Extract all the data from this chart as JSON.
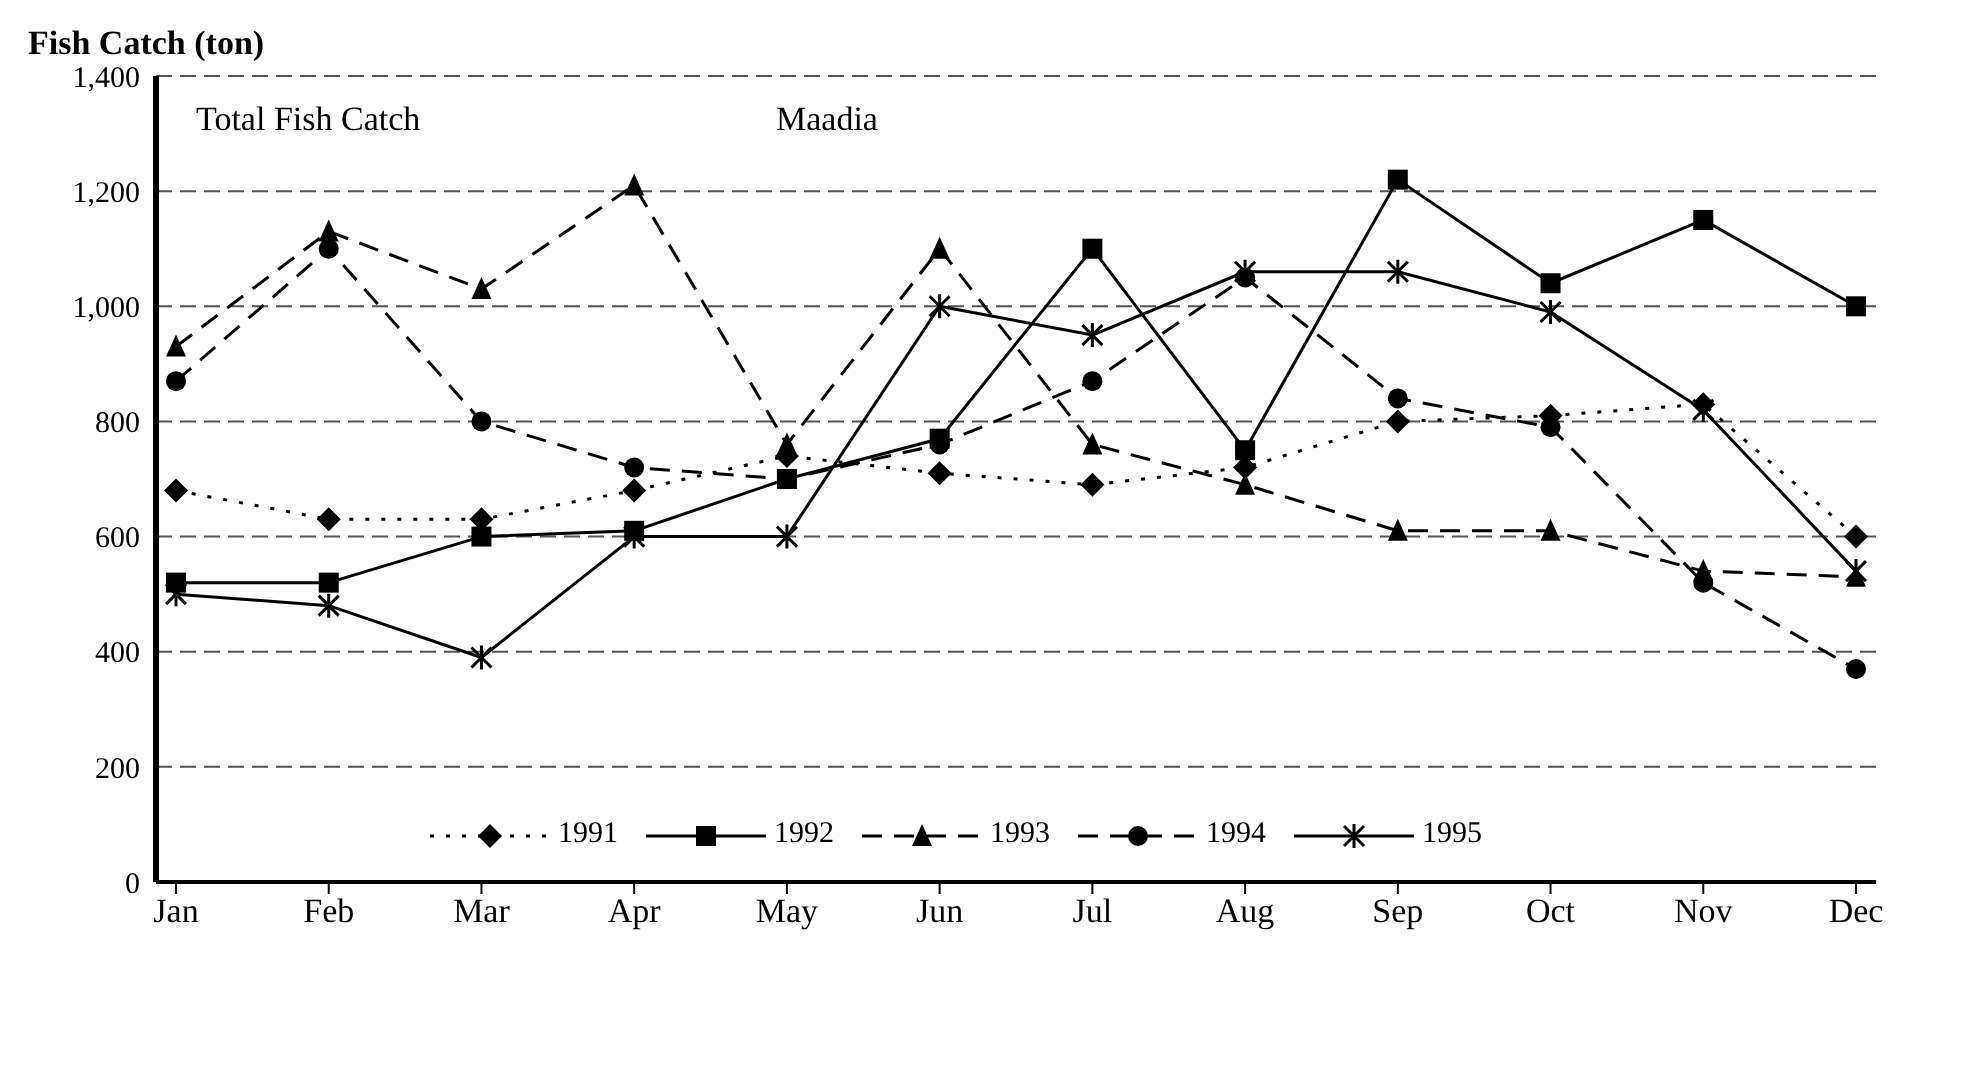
{
  "chart_data": {
    "type": "line",
    "ylabel": "Fish Catch (ton)",
    "annotations": [
      "Total Fish Catch",
      "Maadia"
    ],
    "categories": [
      "Jan",
      "Feb",
      "Mar",
      "Apr",
      "May",
      "Jun",
      "Jul",
      "Aug",
      "Sep",
      "Oct",
      "Nov",
      "Dec"
    ],
    "series": [
      {
        "name": "1991",
        "color": "#000000",
        "marker": "diamond",
        "line_style": "dotted",
        "values": [
          680,
          630,
          630,
          680,
          740,
          710,
          690,
          720,
          800,
          810,
          830,
          600
        ]
      },
      {
        "name": "1992",
        "color": "#000000",
        "marker": "square",
        "line_style": "solid",
        "values": [
          520,
          520,
          600,
          610,
          700,
          770,
          1100,
          750,
          1220,
          1040,
          1150,
          1000
        ]
      },
      {
        "name": "1993",
        "color": "#000000",
        "marker": "triangle",
        "line_style": "dashed",
        "values": [
          930,
          1130,
          1030,
          1210,
          760,
          1100,
          760,
          690,
          610,
          610,
          540,
          530
        ]
      },
      {
        "name": "1994",
        "color": "#000000",
        "marker": "circle",
        "line_style": "dashed",
        "values": [
          870,
          1100,
          800,
          720,
          700,
          760,
          870,
          1050,
          840,
          790,
          520,
          370
        ]
      },
      {
        "name": "1995",
        "color": "#000000",
        "marker": "cross",
        "line_style": "solid",
        "values": [
          500,
          480,
          390,
          600,
          600,
          1000,
          950,
          1060,
          1060,
          990,
          820,
          540
        ]
      }
    ],
    "ylim": [
      0,
      1400
    ],
    "yticks": [
      0,
      200,
      400,
      600,
      800,
      {
        "value": 1000,
        "label": "1,000"
      },
      {
        "value": 1200,
        "label": "1,200"
      },
      {
        "value": 1400,
        "label": "1,400"
      }
    ],
    "grid": "y",
    "legend": "bottom"
  }
}
